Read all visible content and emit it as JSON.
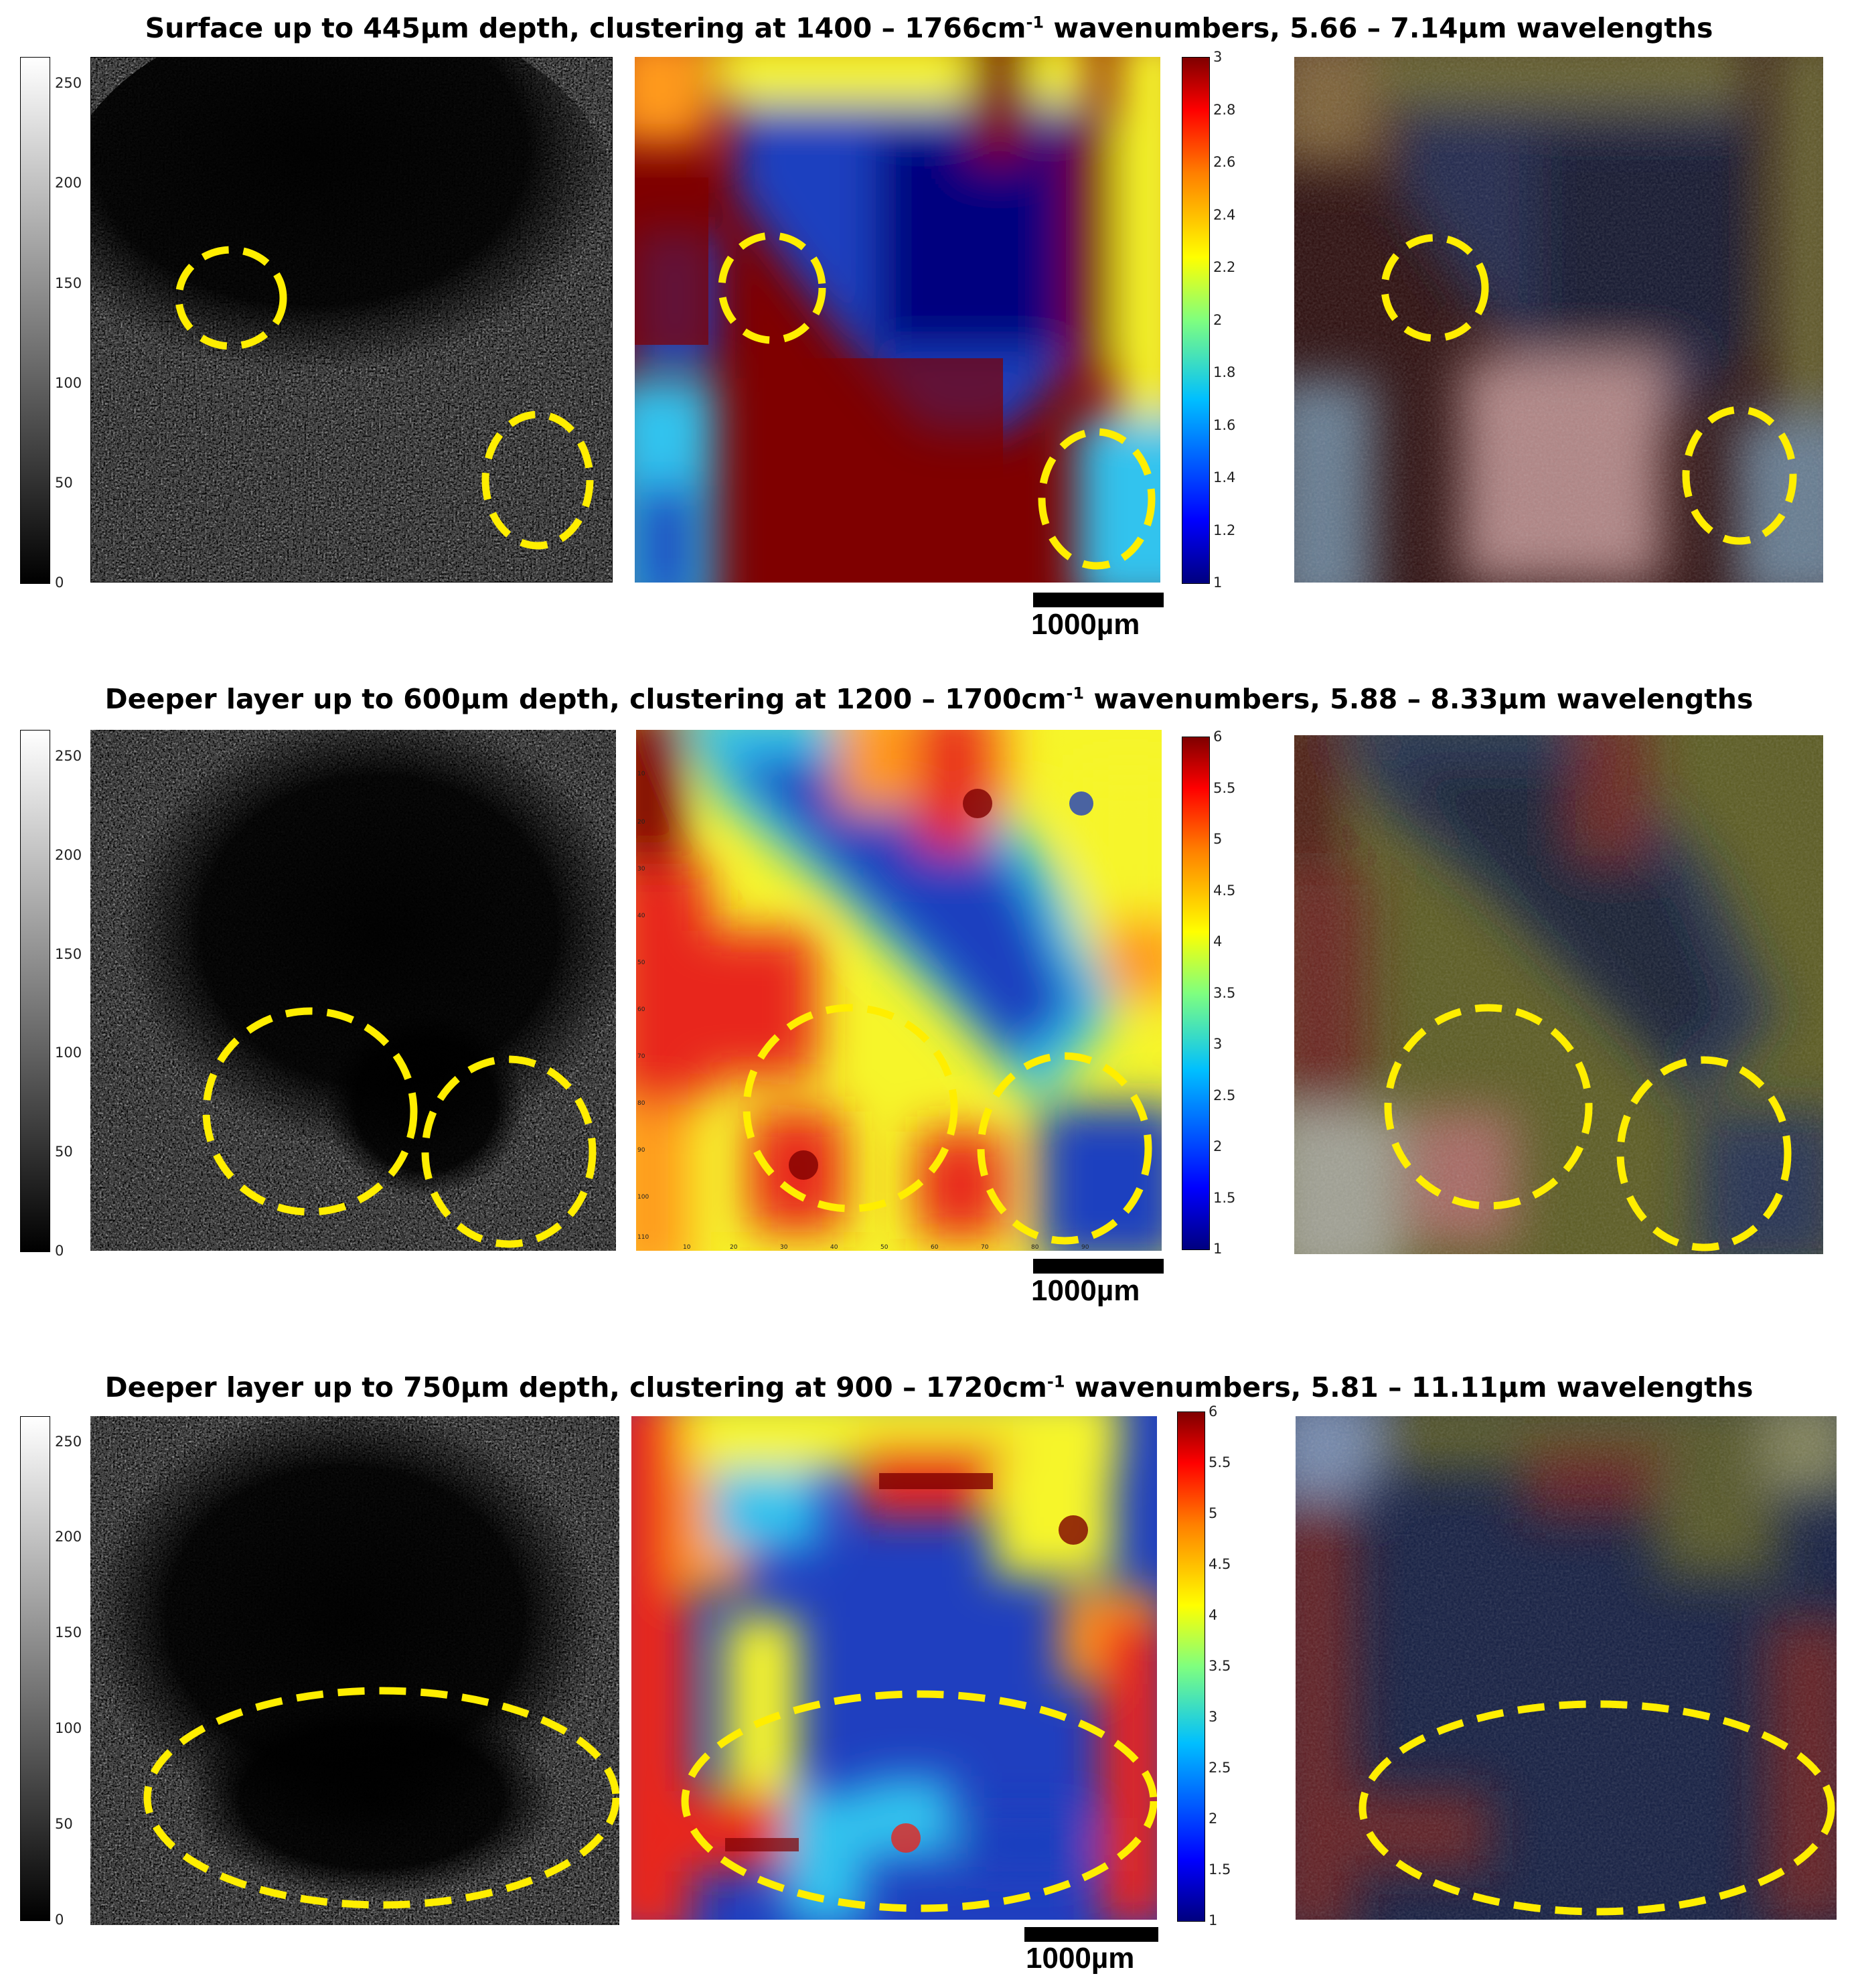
{
  "rows": [
    {
      "title_main": "Surface up to 445µm depth, clustering at 1400 – 1766cm",
      "title_sup": "-1",
      "title_end": " wavenumbers, 5.66 – 7.14µm wavelengths",
      "gray_ticks": [
        "0",
        "50",
        "100",
        "150",
        "200",
        "250"
      ],
      "jet_ticks": [
        "1",
        "1.2",
        "1.4",
        "1.6",
        "1.8",
        "2",
        "2.2",
        "2.4",
        "2.6",
        "2.8",
        "3"
      ],
      "scale_label": "1000µm"
    },
    {
      "title_main": "Deeper layer up to 600µm depth, clustering at 1200 – 1700cm",
      "title_sup": "-1",
      "title_end": " wavenumbers, 5.88 – 8.33µm wavelengths",
      "gray_ticks": [
        "0",
        "50",
        "100",
        "150",
        "200",
        "250"
      ],
      "jet_ticks": [
        "1",
        "1.5",
        "2",
        "2.5",
        "3",
        "3.5",
        "4",
        "4.5",
        "5",
        "5.5",
        "6"
      ],
      "scale_label": "1000µm"
    },
    {
      "title_main": "Deeper layer up to 750µm depth, clustering at 900 – 1720cm",
      "title_sup": "-1",
      "title_end": " wavenumbers, 5.81 – 11.11µm wavelengths",
      "gray_ticks": [
        "0",
        "50",
        "100",
        "150",
        "200",
        "250"
      ],
      "jet_ticks": [
        "1",
        "1.5",
        "2",
        "2.5",
        "3",
        "3.5",
        "4",
        "4.5",
        "5",
        "5.5",
        "6"
      ],
      "scale_label": "1000µm"
    }
  ],
  "colors": {
    "highlight": "#ffee00",
    "jet_dark_blue": "#00007f",
    "jet_blue": "#1f3fbf",
    "jet_cyan": "#33c3ee",
    "jet_yellow": "#f6f52a",
    "jet_orange": "#ff9a1e",
    "jet_red": "#e8251b",
    "jet_dark_red": "#7f0000"
  }
}
